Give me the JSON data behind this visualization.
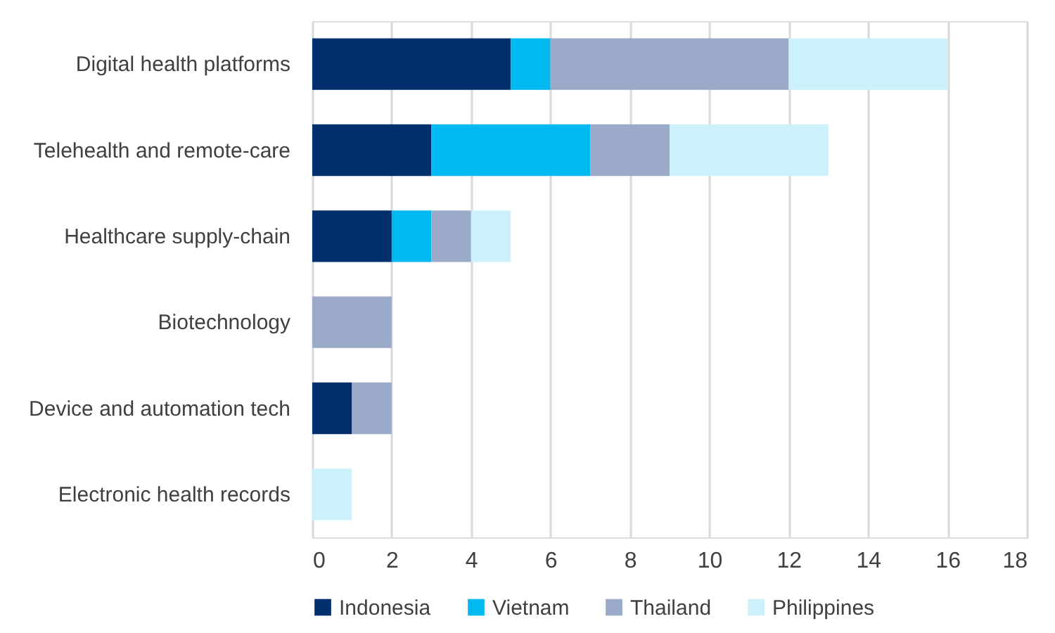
{
  "chart_data": {
    "type": "bar",
    "orientation": "horizontal",
    "stacked": true,
    "categories": [
      "Digital health platforms",
      "Telehealth and remote-care",
      "Healthcare supply-chain",
      "Biotechnology",
      "Device and automation tech",
      "Electronic health records"
    ],
    "series": [
      {
        "name": "Indonesia",
        "color": "#002f6c",
        "values": [
          5,
          3,
          2,
          0,
          1,
          0
        ]
      },
      {
        "name": "Vietnam",
        "color": "#00b9f1",
        "values": [
          1,
          4,
          1,
          0,
          0,
          0
        ]
      },
      {
        "name": "Thailand",
        "color": "#9aaac8",
        "values": [
          6,
          2,
          1,
          2,
          1,
          0
        ]
      },
      {
        "name": "Philippines",
        "color": "#ccf1fa",
        "values": [
          4,
          4,
          1,
          0,
          0,
          1
        ]
      }
    ],
    "xlim": [
      0,
      18
    ],
    "xticks": [
      0,
      2,
      4,
      6,
      8,
      10,
      12,
      14,
      16,
      18
    ],
    "grid": "x",
    "legend": "bottom"
  }
}
